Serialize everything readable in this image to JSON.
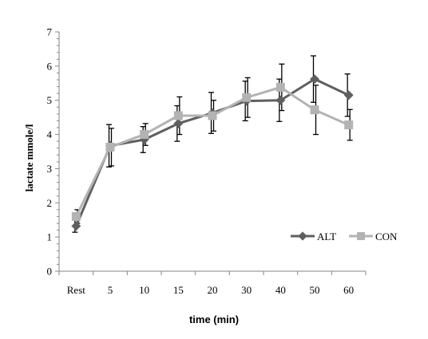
{
  "chart_data": {
    "type": "line",
    "title": "",
    "xlabel": "time (min)",
    "ylabel": "lactate mmole/l",
    "categories": [
      "Rest",
      "5",
      "10",
      "15",
      "20",
      "30",
      "40",
      "50",
      "60"
    ],
    "ylim": [
      0,
      7
    ],
    "yticks": [
      "0",
      "1",
      "2",
      "3",
      "4",
      "5",
      "6",
      "7"
    ],
    "grid": false,
    "legend_position": "bottom-right",
    "error_bars": true,
    "series": [
      {
        "name": "ALT",
        "color": "#5f5f5f",
        "marker": "diamond",
        "values": [
          1.32,
          3.67,
          3.85,
          4.32,
          4.63,
          4.98,
          5.0,
          5.62,
          5.15
        ],
        "errors": [
          0.18,
          0.62,
          0.38,
          0.52,
          0.6,
          0.58,
          0.62,
          0.68,
          0.62
        ]
      },
      {
        "name": "CON",
        "color": "#b3b3b3",
        "marker": "square",
        "values": [
          1.6,
          3.63,
          4.0,
          4.55,
          4.55,
          5.08,
          5.38,
          4.72,
          4.28
        ],
        "errors": [
          0.2,
          0.55,
          0.32,
          0.55,
          0.45,
          0.58,
          0.68,
          0.72,
          0.45
        ]
      }
    ]
  }
}
